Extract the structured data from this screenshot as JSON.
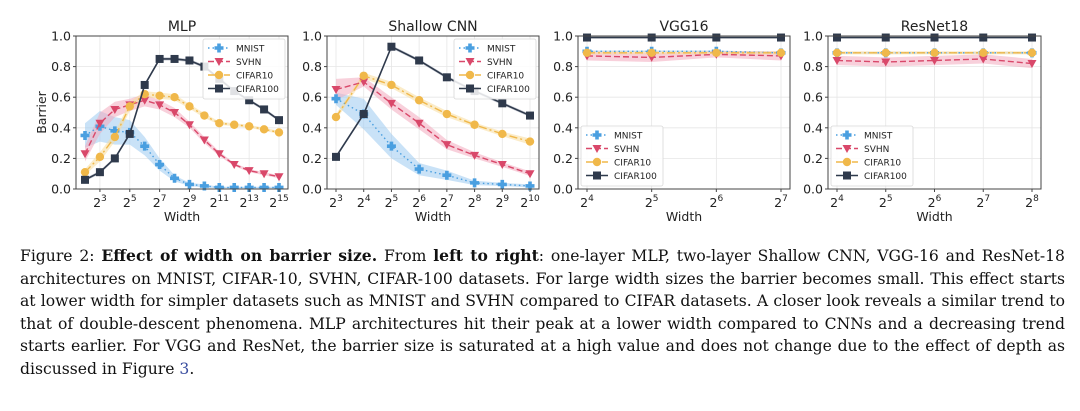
{
  "figure": {
    "caption": {
      "label": "Figure 2:",
      "bold_title": "Effect of width on barrier size.",
      "t1": " From ",
      "bold_ltr": "left to right",
      "t2": ": one-layer MLP, two-layer Shallow CNN, VGG-16 and ResNet-18 architectures on MNIST, CIFAR-10, SVHN, CIFAR-100 datasets. For large width sizes the barrier becomes small. This effect starts at lower width for simpler datasets such as MNIST and SVHN compared to CIFAR datasets. A closer look reveals a similar trend to that of double-descent phenomena. MLP architectures hit their peak at a lower width compared to CNNs and a decreasing trend starts earlier. For VGG and ResNet, the barrier size is saturated at a high value and does not change due to the effect of depth as discussed in Figure ",
      "ref": "3",
      "t3": "."
    },
    "series_styles": {
      "MNIST": {
        "color": "#4a9fe0",
        "band": "#9ccbf0",
        "dash": "1.5,3",
        "marker": "plus"
      },
      "SVHN": {
        "color": "#d9486a",
        "band": "#f3a9bd",
        "dash": "6,3",
        "marker": "tri-down"
      },
      "CIFAR10": {
        "color": "#f0b84a",
        "band": "#f8dc9c",
        "dash": "8,3,2,3",
        "marker": "circle"
      },
      "CIFAR100": {
        "color": "#2f3a4c",
        "band": "#9aa3b3",
        "dash": "",
        "marker": "square"
      }
    }
  },
  "chart_data": [
    {
      "type": "line",
      "title": "MLP",
      "xlabel": "Width",
      "ylabel": "Barrier",
      "x_exponents": [
        2,
        3,
        4,
        5,
        6,
        7,
        8,
        9,
        10,
        11,
        12,
        13,
        14,
        15
      ],
      "x_tick_exponents": [
        3,
        5,
        7,
        9,
        11,
        13,
        15
      ],
      "x_base": 2,
      "ylim": [
        0,
        1.0
      ],
      "y_ticks": [
        "0.0",
        "0.2",
        "0.4",
        "0.6",
        "0.8",
        "1.0"
      ],
      "grid": true,
      "legend": "top-right",
      "series": [
        {
          "name": "MNIST",
          "values": [
            0.35,
            0.41,
            0.38,
            0.37,
            0.28,
            0.16,
            0.07,
            0.03,
            0.02,
            0.01,
            0.01,
            0.01,
            0.01,
            0.01
          ],
          "band": [
            0.08,
            0.1,
            0.09,
            0.08,
            0.06,
            0.04,
            0.02,
            0.01,
            0.01,
            0.005,
            0.005,
            0.005,
            0.005,
            0.005
          ]
        },
        {
          "name": "SVHN",
          "values": [
            0.23,
            0.43,
            0.52,
            0.55,
            0.58,
            0.55,
            0.5,
            0.42,
            0.32,
            0.23,
            0.16,
            0.12,
            0.1,
            0.08
          ],
          "band": [
            0.05,
            0.07,
            0.05,
            0.04,
            0.04,
            0.03,
            0.03,
            0.02,
            0.02,
            0.015,
            0.01,
            0.01,
            0.01,
            0.01
          ]
        },
        {
          "name": "CIFAR10",
          "values": [
            0.11,
            0.21,
            0.34,
            0.54,
            0.62,
            0.61,
            0.6,
            0.54,
            0.48,
            0.43,
            0.42,
            0.41,
            0.39,
            0.37
          ],
          "band": [
            0.02,
            0.03,
            0.03,
            0.03,
            0.02,
            0.02,
            0.02,
            0.015,
            0.015,
            0.01,
            0.01,
            0.01,
            0.01,
            0.01
          ]
        },
        {
          "name": "CIFAR100",
          "values": [
            0.06,
            0.11,
            0.2,
            0.36,
            0.68,
            0.85,
            0.85,
            0.84,
            0.8,
            0.72,
            0.64,
            0.58,
            0.52,
            0.45
          ],
          "band": [
            0.01,
            0.01,
            0.01,
            0.01,
            0.01,
            0.01,
            0.01,
            0.01,
            0.01,
            0.01,
            0.01,
            0.01,
            0.01,
            0.01
          ]
        }
      ]
    },
    {
      "type": "line",
      "title": "Shallow CNN",
      "xlabel": "Width",
      "ylabel": "",
      "x_exponents": [
        3,
        4,
        5,
        6,
        7,
        8,
        9,
        10
      ],
      "x_tick_exponents": [
        3,
        4,
        5,
        6,
        7,
        8,
        9,
        10
      ],
      "x_base": 2,
      "ylim": [
        0,
        1.0
      ],
      "y_ticks": [
        "0.0",
        "0.2",
        "0.4",
        "0.6",
        "0.8",
        "1.0"
      ],
      "grid": true,
      "legend": "top-right",
      "series": [
        {
          "name": "MNIST",
          "values": [
            0.59,
            0.49,
            0.28,
            0.13,
            0.09,
            0.04,
            0.03,
            0.02
          ],
          "band": [
            0.04,
            0.1,
            0.08,
            0.04,
            0.03,
            0.015,
            0.01,
            0.01
          ]
        },
        {
          "name": "SVHN",
          "values": [
            0.65,
            0.7,
            0.56,
            0.43,
            0.29,
            0.22,
            0.16,
            0.1
          ],
          "band": [
            0.07,
            0.03,
            0.04,
            0.04,
            0.03,
            0.02,
            0.015,
            0.015
          ]
        },
        {
          "name": "CIFAR10",
          "values": [
            0.47,
            0.74,
            0.68,
            0.58,
            0.49,
            0.42,
            0.36,
            0.31
          ],
          "band": [
            0.02,
            0.02,
            0.02,
            0.02,
            0.02,
            0.015,
            0.015,
            0.02
          ]
        },
        {
          "name": "CIFAR100",
          "values": [
            0.21,
            0.49,
            0.93,
            0.84,
            0.73,
            0.64,
            0.56,
            0.48
          ],
          "band": [
            0.01,
            0.01,
            0.01,
            0.01,
            0.01,
            0.01,
            0.01,
            0.01
          ]
        }
      ]
    },
    {
      "type": "line",
      "title": "VGG16",
      "xlabel": "Width",
      "ylabel": "",
      "x_exponents": [
        4,
        5,
        6,
        7
      ],
      "x_tick_exponents": [
        4,
        5,
        6,
        7
      ],
      "x_base": 2,
      "ylim": [
        0,
        1.0
      ],
      "y_ticks": [
        "0.0",
        "0.2",
        "0.4",
        "0.6",
        "0.8",
        "1.0"
      ],
      "grid": true,
      "legend": "bottom-left",
      "series": [
        {
          "name": "MNIST",
          "values": [
            0.9,
            0.9,
            0.9,
            0.89
          ],
          "band": [
            0.005,
            0.005,
            0.005,
            0.005
          ]
        },
        {
          "name": "SVHN",
          "values": [
            0.87,
            0.86,
            0.88,
            0.87
          ],
          "band": [
            0.03,
            0.03,
            0.02,
            0.03
          ]
        },
        {
          "name": "CIFAR10",
          "values": [
            0.89,
            0.89,
            0.89,
            0.89
          ],
          "band": [
            0.01,
            0.01,
            0.01,
            0.01
          ]
        },
        {
          "name": "CIFAR100",
          "values": [
            0.99,
            0.99,
            0.99,
            0.99
          ],
          "band": [
            0.003,
            0.003,
            0.003,
            0.003
          ]
        }
      ]
    },
    {
      "type": "line",
      "title": "ResNet18",
      "xlabel": "Width",
      "ylabel": "",
      "x_exponents": [
        4,
        5,
        6,
        7,
        8
      ],
      "x_tick_exponents": [
        4,
        5,
        6,
        7,
        8
      ],
      "x_base": 2,
      "ylim": [
        0,
        1.0
      ],
      "y_ticks": [
        "0.0",
        "0.2",
        "0.4",
        "0.6",
        "0.8",
        "1.0"
      ],
      "grid": true,
      "legend": "bottom-left",
      "series": [
        {
          "name": "MNIST",
          "values": [
            0.89,
            0.89,
            0.89,
            0.89,
            0.89
          ],
          "band": [
            0.005,
            0.005,
            0.005,
            0.005,
            0.005
          ]
        },
        {
          "name": "SVHN",
          "values": [
            0.84,
            0.83,
            0.84,
            0.85,
            0.82
          ],
          "band": [
            0.03,
            0.03,
            0.03,
            0.03,
            0.03
          ]
        },
        {
          "name": "CIFAR10",
          "values": [
            0.89,
            0.89,
            0.89,
            0.89,
            0.89
          ],
          "band": [
            0.01,
            0.01,
            0.01,
            0.01,
            0.01
          ]
        },
        {
          "name": "CIFAR100",
          "values": [
            0.99,
            0.99,
            0.99,
            0.99,
            0.99
          ],
          "band": [
            0.003,
            0.003,
            0.003,
            0.003,
            0.003
          ]
        }
      ]
    }
  ]
}
